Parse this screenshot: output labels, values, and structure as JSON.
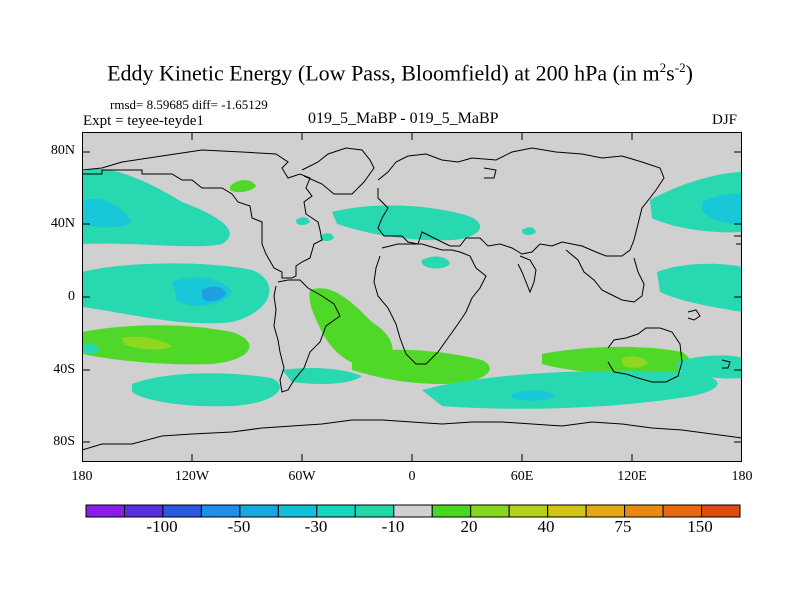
{
  "title": {
    "main": "Eddy Kinetic Energy (Low Pass, Bloomfield) at 200 hPa (in m",
    "exp1": "2",
    "mid": "s",
    "exp2": "-2",
    "close": ")"
  },
  "stats": "rmsd= 8.59685 diff= -1.65129",
  "expt": "Expt = teyee-teyde1",
  "case": "019_5_MaBP - 019_5_MaBP",
  "season": "DJF",
  "lat_labels": [
    "80N",
    "40N",
    "0",
    "40S",
    "80S"
  ],
  "lon_labels": [
    "180",
    "120W",
    "60W",
    "0",
    "60E",
    "120E",
    "180"
  ],
  "colorbar": {
    "labels": [
      "-100",
      "-50",
      "-30",
      "-10",
      "20",
      "40",
      "75",
      "150"
    ],
    "colors": [
      "#8a1ee8",
      "#5a2ee0",
      "#2a5ae0",
      "#1e8ee8",
      "#16aae0",
      "#10c0d8",
      "#14d8c0",
      "#20d8a8",
      "#d0d0d0",
      "#48d820",
      "#86d81e",
      "#b4d018",
      "#d2c410",
      "#e2aa10",
      "#e88a10",
      "#e86810",
      "#e04a10"
    ]
  },
  "colors": {
    "background": "#d0d0d0",
    "teal": "#28d8b0",
    "cyan": "#18c8d8",
    "blue": "#1ea0e0",
    "green": "#50d828",
    "yellowgreen": "#90d820",
    "coast": "#000000"
  }
}
